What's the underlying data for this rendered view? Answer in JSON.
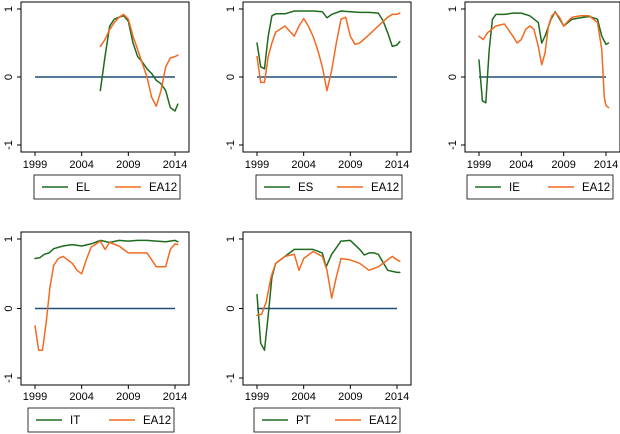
{
  "colors": {
    "country_line": "#1e6b1e",
    "ea12_line": "#f26a21",
    "zero_line": "#1f4e79",
    "frame": "#000000"
  },
  "chart_data": [
    {
      "type": "line",
      "x_ticks": [
        "1999",
        "2004",
        "2009",
        "2014"
      ],
      "y_ticks": [
        "-1",
        "0",
        "1"
      ],
      "xlim": [
        1999,
        2014
      ],
      "ylim": [
        -1,
        1
      ],
      "legend": "bottom",
      "grid": false,
      "series": [
        {
          "name": "EL",
          "color": "country_line",
          "x": [
            2006.0,
            2006.5,
            2007.0,
            2007.5,
            2008.0,
            2008.5,
            2009.0,
            2009.5,
            2010.0,
            2010.5,
            2011.0,
            2011.5,
            2012.0,
            2012.5,
            2013.0,
            2013.5,
            2014.0,
            2014.3
          ],
          "y": [
            -0.2,
            0.3,
            0.75,
            0.85,
            0.88,
            0.9,
            0.82,
            0.5,
            0.3,
            0.22,
            0.12,
            0.05,
            -0.05,
            -0.1,
            -0.2,
            -0.45,
            -0.5,
            -0.4
          ]
        },
        {
          "name": "EA12",
          "color": "ea12_line",
          "x": [
            2006.0,
            2006.5,
            2007.0,
            2007.5,
            2008.0,
            2008.5,
            2009.0,
            2009.5,
            2010.0,
            2010.5,
            2011.0,
            2011.5,
            2012.0,
            2012.5,
            2013.0,
            2013.5,
            2014.0,
            2014.3
          ],
          "y": [
            0.45,
            0.55,
            0.7,
            0.8,
            0.88,
            0.92,
            0.85,
            0.6,
            0.4,
            0.2,
            0.0,
            -0.3,
            -0.43,
            -0.2,
            0.15,
            0.28,
            0.3,
            0.32
          ]
        }
      ]
    },
    {
      "type": "line",
      "x_ticks": [
        "1999",
        "2004",
        "2009",
        "2014"
      ],
      "y_ticks": [
        "-1",
        "0",
        "1"
      ],
      "xlim": [
        1999,
        2014
      ],
      "ylim": [
        -1,
        1
      ],
      "legend": "bottom",
      "grid": false,
      "series": [
        {
          "name": "ES",
          "color": "country_line",
          "x": [
            1999.0,
            1999.4,
            1999.8,
            2000.2,
            2000.6,
            2001.0,
            2001.5,
            2002.0,
            2003.0,
            2004.0,
            2005.0,
            2006.0,
            2006.5,
            2007.0,
            2008.0,
            2009.0,
            2010.0,
            2011.0,
            2012.0,
            2012.5,
            2013.0,
            2013.5,
            2014.0,
            2014.3
          ],
          "y": [
            0.5,
            0.15,
            0.12,
            0.6,
            0.9,
            0.93,
            0.93,
            0.93,
            0.97,
            0.97,
            0.97,
            0.96,
            0.87,
            0.92,
            0.97,
            0.96,
            0.95,
            0.95,
            0.94,
            0.83,
            0.65,
            0.45,
            0.47,
            0.52
          ]
        },
        {
          "name": "EA12",
          "color": "ea12_line",
          "x": [
            1999.0,
            1999.4,
            1999.8,
            2000.2,
            2000.6,
            2001.0,
            2002.0,
            2003.0,
            2003.5,
            2004.0,
            2004.5,
            2005.0,
            2005.5,
            2006.0,
            2006.5,
            2007.0,
            2007.5,
            2008.0,
            2008.5,
            2009.0,
            2009.5,
            2010.0,
            2011.0,
            2012.0,
            2013.0,
            2013.5,
            2014.0,
            2014.3
          ],
          "y": [
            0.3,
            -0.08,
            -0.08,
            0.3,
            0.5,
            0.66,
            0.75,
            0.6,
            0.75,
            0.86,
            0.75,
            0.6,
            0.4,
            0.15,
            -0.2,
            0.1,
            0.5,
            0.85,
            0.88,
            0.6,
            0.48,
            0.5,
            0.62,
            0.75,
            0.88,
            0.92,
            0.92,
            0.94
          ]
        }
      ]
    },
    {
      "type": "line",
      "x_ticks": [
        "1999",
        "2004",
        "2009",
        "2014"
      ],
      "y_ticks": [
        "-1",
        "0",
        "1"
      ],
      "xlim": [
        1999,
        2014
      ],
      "ylim": [
        -1,
        1
      ],
      "legend": "bottom",
      "grid": false,
      "series": [
        {
          "name": "IE",
          "color": "country_line",
          "x": [
            1999.0,
            1999.4,
            1999.8,
            2000.2,
            2000.6,
            2001.0,
            2002.0,
            2003.0,
            2004.0,
            2005.0,
            2006.0,
            2006.4,
            2006.8,
            2007.5,
            2008.0,
            2009.0,
            2010.0,
            2011.0,
            2012.0,
            2013.0,
            2013.5,
            2014.0,
            2014.3
          ],
          "y": [
            0.25,
            -0.35,
            -0.38,
            0.4,
            0.85,
            0.92,
            0.92,
            0.94,
            0.94,
            0.9,
            0.8,
            0.5,
            0.6,
            0.85,
            0.96,
            0.75,
            0.85,
            0.87,
            0.89,
            0.85,
            0.6,
            0.48,
            0.5
          ]
        },
        {
          "name": "EA12",
          "color": "ea12_line",
          "x": [
            1999.0,
            1999.5,
            2000.0,
            2001.0,
            2002.0,
            2003.0,
            2003.5,
            2004.0,
            2004.5,
            2005.0,
            2005.5,
            2006.0,
            2006.4,
            2006.8,
            2007.2,
            2007.6,
            2008.0,
            2008.5,
            2009.0,
            2009.5,
            2010.0,
            2011.0,
            2012.0,
            2013.0,
            2013.5,
            2013.8,
            2014.0,
            2014.3
          ],
          "y": [
            0.6,
            0.55,
            0.65,
            0.75,
            0.78,
            0.6,
            0.5,
            0.55,
            0.7,
            0.75,
            0.7,
            0.45,
            0.18,
            0.35,
            0.75,
            0.9,
            0.95,
            0.88,
            0.75,
            0.82,
            0.88,
            0.9,
            0.9,
            0.8,
            0.4,
            -0.3,
            -0.42,
            -0.45
          ]
        }
      ]
    },
    {
      "type": "line",
      "x_ticks": [
        "1999",
        "2004",
        "2009",
        "2014"
      ],
      "y_ticks": [
        "-1",
        "0",
        "1"
      ],
      "xlim": [
        1999,
        2014
      ],
      "ylim": [
        -1,
        1
      ],
      "legend": "bottom",
      "grid": false,
      "series": [
        {
          "name": "IT",
          "color": "country_line",
          "x": [
            1999.0,
            1999.5,
            2000.0,
            2000.5,
            2001.0,
            2002.0,
            2003.0,
            2004.0,
            2005.0,
            2006.0,
            2007.0,
            2008.0,
            2009.0,
            2010.0,
            2011.0,
            2012.0,
            2013.0,
            2014.0,
            2014.3
          ],
          "y": [
            0.72,
            0.73,
            0.78,
            0.8,
            0.86,
            0.9,
            0.92,
            0.9,
            0.93,
            0.98,
            0.95,
            0.98,
            0.97,
            0.98,
            0.98,
            0.97,
            0.96,
            0.98,
            0.96
          ]
        },
        {
          "name": "EA12",
          "color": "ea12_line",
          "x": [
            1999.0,
            1999.4,
            1999.8,
            2000.2,
            2000.6,
            2001.0,
            2001.5,
            2002.0,
            2003.0,
            2003.5,
            2004.0,
            2004.5,
            2005.0,
            2006.0,
            2006.5,
            2007.0,
            2008.0,
            2009.0,
            2010.0,
            2011.0,
            2011.5,
            2012.0,
            2012.5,
            2013.0,
            2013.5,
            2014.0,
            2014.3
          ],
          "y": [
            -0.25,
            -0.6,
            -0.6,
            -0.2,
            0.3,
            0.62,
            0.72,
            0.75,
            0.65,
            0.55,
            0.5,
            0.7,
            0.88,
            0.97,
            0.85,
            0.95,
            0.9,
            0.8,
            0.8,
            0.8,
            0.7,
            0.6,
            0.6,
            0.6,
            0.85,
            0.93,
            0.92
          ]
        }
      ]
    },
    {
      "type": "line",
      "x_ticks": [
        "1999",
        "2004",
        "2009",
        "2014"
      ],
      "y_ticks": [
        "-1",
        "0",
        "1"
      ],
      "xlim": [
        1999,
        2014
      ],
      "ylim": [
        -1,
        1
      ],
      "legend": "bottom",
      "grid": false,
      "series": [
        {
          "name": "PT",
          "color": "country_line",
          "x": [
            1999.0,
            1999.4,
            1999.8,
            2000.2,
            2000.6,
            2001.0,
            2002.0,
            2003.0,
            2004.0,
            2005.0,
            2006.0,
            2006.4,
            2007.0,
            2008.0,
            2009.0,
            2010.0,
            2010.5,
            2011.0,
            2011.5,
            2012.0,
            2013.0,
            2014.0,
            2014.3
          ],
          "y": [
            0.2,
            -0.5,
            -0.6,
            -0.1,
            0.45,
            0.65,
            0.75,
            0.85,
            0.85,
            0.85,
            0.8,
            0.6,
            0.78,
            0.97,
            0.98,
            0.85,
            0.77,
            0.8,
            0.8,
            0.78,
            0.55,
            0.52,
            0.52
          ]
        },
        {
          "name": "EA12",
          "color": "ea12_line",
          "x": [
            1999.0,
            1999.5,
            2000.0,
            2000.5,
            2001.0,
            2002.0,
            2003.0,
            2003.5,
            2004.0,
            2005.0,
            2006.0,
            2006.5,
            2007.0,
            2007.5,
            2008.0,
            2009.0,
            2010.0,
            2011.0,
            2012.0,
            2013.0,
            2013.5,
            2014.0,
            2014.3
          ],
          "y": [
            -0.1,
            -0.08,
            0.1,
            0.45,
            0.65,
            0.75,
            0.78,
            0.55,
            0.72,
            0.82,
            0.75,
            0.55,
            0.15,
            0.45,
            0.72,
            0.7,
            0.65,
            0.55,
            0.6,
            0.7,
            0.75,
            0.7,
            0.68
          ]
        }
      ]
    }
  ]
}
